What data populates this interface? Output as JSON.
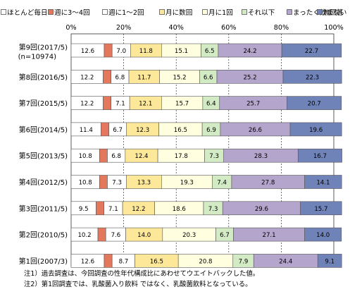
{
  "chart_data": {
    "type": "bar",
    "orientation": "horizontal",
    "stacked": true,
    "xlim": [
      0,
      100
    ],
    "x_ticks": [
      "0%",
      "20%",
      "40%",
      "60%",
      "80%",
      "100%"
    ],
    "grid": true,
    "legend_position": "top",
    "categories": [
      [
        "第9回(2017/5)",
        "(n=10974)"
      ],
      [
        "第8回(2016/5)"
      ],
      [
        "第7回(2015/5)"
      ],
      [
        "第6回(2014/5)"
      ],
      [
        "第5回(2013/5)"
      ],
      [
        "第4回(2012/5)"
      ],
      [
        "第3回(2011/5)"
      ],
      [
        "第2回(2010/5)"
      ],
      [
        "第1回(2007/3)"
      ]
    ],
    "series": [
      {
        "name": "ほとんど毎日",
        "color": "#ffffff",
        "values": [
          12.6,
          12.2,
          12.2,
          11.4,
          10.8,
          10.8,
          9.5,
          10.2,
          12.6
        ]
      },
      {
        "name": "週に3～4回",
        "color": "#e4785c",
        "values": [
          3.0,
          3.0,
          3.0,
          3.0,
          3.0,
          3.0,
          3.0,
          3.0,
          3.0
        ]
      },
      {
        "name": "週に1～2回",
        "color": "#ffffff",
        "values": [
          7.0,
          6.8,
          7.1,
          6.7,
          6.8,
          7.3,
          7.1,
          7.6,
          8.7
        ]
      },
      {
        "name": "月に数回",
        "color": "#fde89a",
        "values": [
          11.8,
          11.7,
          12.1,
          12.3,
          12.4,
          13.3,
          12.2,
          14.0,
          16.5
        ]
      },
      {
        "name": "月に1回",
        "color": "#ffffe0",
        "values": [
          15.1,
          15.2,
          15.7,
          16.5,
          17.8,
          19.3,
          18.6,
          20.3,
          20.8
        ]
      },
      {
        "name": "それ以下",
        "color": "#d2ebc4",
        "values": [
          6.5,
          6.6,
          6.4,
          6.9,
          7.3,
          7.4,
          7.3,
          6.7,
          7.9
        ]
      },
      {
        "name": "まったく飲まない",
        "color": "#b3a5cc",
        "values": [
          24.2,
          25.2,
          25.7,
          26.6,
          28.3,
          27.8,
          29.6,
          27.1,
          24.4
        ]
      },
      {
        "name": "無回答",
        "color": "#7083b8",
        "values": [
          22.7,
          22.3,
          20.7,
          19.6,
          16.7,
          14.1,
          15.7,
          14.0,
          9.1
        ]
      }
    ],
    "data_labels": [
      [
        "12.6",
        "7.0",
        "11.8",
        "15.1",
        "6.5",
        "24.2",
        "22.7"
      ],
      [
        "12.2",
        "6.8",
        "11.7",
        "15.2",
        "6.6",
        "25.2",
        "22.3"
      ],
      [
        "12.2",
        "7.1",
        "12.1",
        "15.7",
        "6.4",
        "25.7",
        "20.7"
      ],
      [
        "11.4",
        "6.7",
        "12.3",
        "16.5",
        "6.9",
        "26.6",
        "19.6"
      ],
      [
        "10.8",
        "6.8",
        "12.4",
        "17.8",
        "7.3",
        "28.3",
        "16.7"
      ],
      [
        "10.8",
        "7.3",
        "13.3",
        "19.3",
        "7.4",
        "27.8",
        "14.1"
      ],
      [
        "9.5",
        "7.1",
        "12.2",
        "18.6",
        "7.3",
        "29.6",
        "15.7"
      ],
      [
        "10.2",
        "7.6",
        "14.0",
        "20.3",
        "6.7",
        "27.1",
        "14.0"
      ],
      [
        "12.6",
        "8.7",
        "16.5",
        "20.8",
        "7.9",
        "24.4",
        "9.1"
      ]
    ],
    "label_segments": [
      0,
      2,
      3,
      4,
      5,
      6,
      7
    ]
  },
  "notes": [
    "注1）過去調査は、今回調査の性年代構成比にあわせてウエイトバックした値。",
    "注2）第1回調査では、乳酸菌入り飲料 ではなく、乳酸菌飲料となっている。"
  ]
}
